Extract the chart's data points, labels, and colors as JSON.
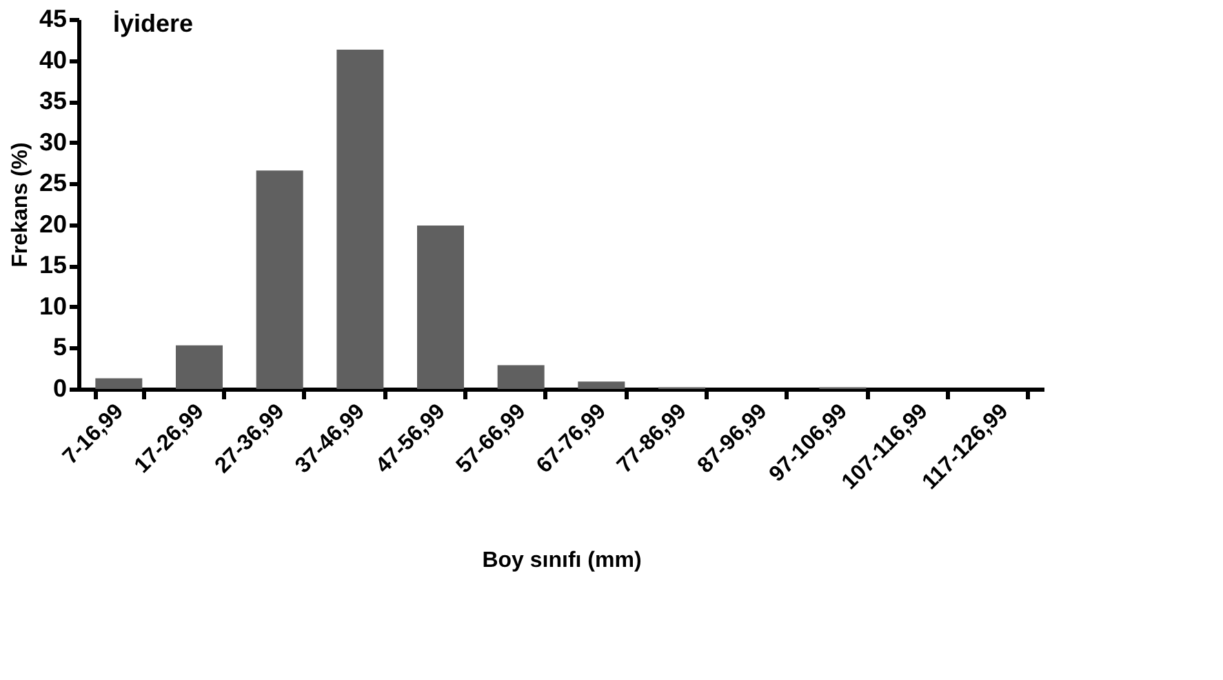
{
  "chart_data": {
    "type": "bar",
    "title": "İyidere",
    "xlabel": "Boy sınıfı (mm)",
    "ylabel": "Frekans (%)",
    "categories": [
      "7-16,99",
      "17-26,99",
      "27-36,99",
      "37-46,99",
      "47-56,99",
      "57-66,99",
      "67-76,99",
      "77-86,99",
      "87-96,99",
      "97-106,99",
      "107-116,99",
      "117-126,99"
    ],
    "values": [
      1.3,
      5.3,
      26.6,
      41.3,
      19.9,
      2.9,
      0.9,
      0.2,
      0,
      0.2,
      0,
      0
    ],
    "color": "#606060",
    "ylim": [
      0,
      45
    ],
    "yticks": [
      0,
      5,
      10,
      15,
      20,
      25,
      30,
      35,
      40,
      45
    ],
    "grid": false
  }
}
